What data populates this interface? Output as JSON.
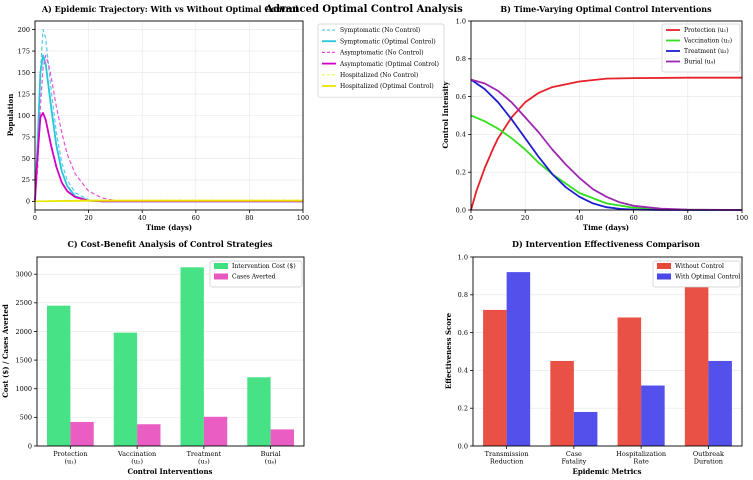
{
  "suptitle": "Advanced Optimal Control Analysis",
  "chart_data": [
    {
      "id": "A",
      "type": "line",
      "title": "A) Epidemic Trajectory: With vs Without Optimal Control",
      "xlabel": "Time (days)",
      "ylabel": "Population",
      "xlim": [
        0,
        100
      ],
      "ylim": [
        -10,
        210
      ],
      "xticks": [
        0,
        20,
        40,
        60,
        80,
        100
      ],
      "yticks": [
        0,
        25,
        50,
        75,
        100,
        125,
        150,
        175,
        200
      ],
      "legend_loc": "outside-right",
      "series": [
        {
          "name": "Symptomatic (No Control)",
          "color": "#5bc8f0",
          "dash": true,
          "x": [
            0,
            1,
            2,
            3,
            4,
            5,
            6,
            8,
            10,
            12,
            15,
            20,
            25,
            30,
            40,
            100
          ],
          "y": [
            2,
            60,
            150,
            200,
            190,
            160,
            130,
            80,
            45,
            25,
            10,
            2,
            0,
            0,
            0,
            0
          ]
        },
        {
          "name": "Symptomatic (Optimal Control)",
          "color": "#26c6da",
          "dash": false,
          "x": [
            0,
            1,
            2,
            3,
            4,
            5,
            6,
            8,
            10,
            12,
            15,
            20,
            25,
            30,
            100
          ],
          "y": [
            2,
            70,
            150,
            170,
            160,
            135,
            110,
            65,
            35,
            18,
            6,
            1,
            0,
            0,
            0
          ]
        },
        {
          "name": "Asymptomatic (No Control)",
          "color": "#ee4fd8",
          "dash": true,
          "x": [
            0,
            1,
            2,
            3,
            4,
            5,
            6,
            8,
            10,
            12,
            15,
            20,
            25,
            30,
            35,
            40,
            100
          ],
          "y": [
            1,
            40,
            110,
            155,
            170,
            160,
            145,
            110,
            80,
            55,
            32,
            12,
            4,
            1,
            0,
            0,
            0
          ]
        },
        {
          "name": "Asymptomatic (Optimal Control)",
          "color": "#d300c4",
          "dash": false,
          "x": [
            0,
            1,
            2,
            3,
            4,
            5,
            6,
            8,
            10,
            12,
            15,
            20,
            25,
            30,
            100
          ],
          "y": [
            1,
            55,
            98,
            103,
            95,
            80,
            65,
            40,
            22,
            12,
            5,
            1,
            0,
            0,
            0
          ]
        },
        {
          "name": "Hospitalized (No Control)",
          "color": "#f2f25a",
          "dash": true,
          "x": [
            0,
            10,
            20,
            40,
            60,
            80,
            100
          ],
          "y": [
            0,
            1,
            1.5,
            1.5,
            1.5,
            1.5,
            1.5
          ]
        },
        {
          "name": "Hospitalized (Optimal Control)",
          "color": "#e7e700",
          "dash": false,
          "x": [
            0,
            10,
            20,
            40,
            60,
            80,
            100
          ],
          "y": [
            0,
            0.5,
            0.8,
            0.8,
            0.8,
            0.8,
            0.8
          ]
        }
      ]
    },
    {
      "id": "B",
      "type": "line",
      "title": "B) Time-Varying Optimal Control Interventions",
      "xlabel": "Time (days)",
      "ylabel": "Control Intensity",
      "xlim": [
        0,
        100
      ],
      "ylim": [
        0,
        1.0
      ],
      "xticks": [
        0,
        20,
        40,
        60,
        80,
        100
      ],
      "yticks": [
        0.0,
        0.2,
        0.4,
        0.6,
        0.8,
        1.0
      ],
      "legend_loc": "top-right",
      "series": [
        {
          "name": "Protection (u₁)",
          "color": "#e8202a",
          "dash": false,
          "x": [
            0,
            2,
            5,
            8,
            10,
            15,
            20,
            25,
            30,
            40,
            50,
            60,
            80,
            100
          ],
          "y": [
            0,
            0.1,
            0.22,
            0.32,
            0.38,
            0.49,
            0.57,
            0.62,
            0.65,
            0.68,
            0.695,
            0.698,
            0.7,
            0.7
          ]
        },
        {
          "name": "Vaccination (u₂)",
          "color": "#32e020",
          "dash": false,
          "x": [
            0,
            5,
            10,
            15,
            20,
            25,
            30,
            40,
            50,
            60,
            70,
            80,
            100
          ],
          "y": [
            0.5,
            0.47,
            0.43,
            0.38,
            0.32,
            0.25,
            0.19,
            0.09,
            0.035,
            0.012,
            0.004,
            0.001,
            0
          ]
        },
        {
          "name": "Treatment (u₃)",
          "color": "#1f1fd0",
          "dash": false,
          "x": [
            0,
            5,
            10,
            15,
            20,
            25,
            30,
            35,
            40,
            45,
            50,
            55,
            60,
            70,
            100
          ],
          "y": [
            0.69,
            0.64,
            0.57,
            0.48,
            0.38,
            0.28,
            0.19,
            0.12,
            0.07,
            0.035,
            0.015,
            0.006,
            0.002,
            0,
            0
          ]
        },
        {
          "name": "Burial (u₄)",
          "color": "#9c27b0",
          "dash": false,
          "x": [
            0,
            5,
            10,
            15,
            20,
            25,
            30,
            35,
            40,
            45,
            50,
            55,
            60,
            70,
            80,
            100
          ],
          "y": [
            0.69,
            0.67,
            0.63,
            0.57,
            0.49,
            0.41,
            0.32,
            0.24,
            0.17,
            0.11,
            0.07,
            0.04,
            0.022,
            0.007,
            0.002,
            0
          ]
        }
      ]
    },
    {
      "id": "C",
      "type": "bar",
      "title": "C) Cost-Benefit Analysis of Control Strategies",
      "xlabel": "Control Interventions",
      "ylabel": "Cost ($) / Cases Averted",
      "categories": [
        [
          "Protection",
          "(u₁)"
        ],
        [
          "Vaccination",
          "(u₂)"
        ],
        [
          "Treatment",
          "(u₃)"
        ],
        [
          "Burial",
          "(u₄)"
        ]
      ],
      "ylim": [
        0,
        3300
      ],
      "yticks": [
        0,
        500,
        1000,
        1500,
        2000,
        2500,
        3000
      ],
      "legend_loc": "top-right",
      "series": [
        {
          "name": "Intervention Cost ($)",
          "color": "#3ee07f",
          "values": [
            2450,
            1980,
            3120,
            1200
          ]
        },
        {
          "name": "Cases Averted",
          "color": "#e955c0",
          "values": [
            420,
            380,
            510,
            290
          ]
        }
      ]
    },
    {
      "id": "D",
      "type": "bar",
      "title": "D) Intervention Effectiveness Comparison",
      "xlabel": "Epidemic Metrics",
      "ylabel": "Effectiveness Score",
      "categories": [
        [
          "Transmission",
          "Reduction"
        ],
        [
          "Case",
          "Fatality"
        ],
        [
          "Hospitalization",
          "Rate"
        ],
        [
          "Outbreak",
          "Duration"
        ]
      ],
      "ylim": [
        0,
        1.0
      ],
      "yticks": [
        0.0,
        0.2,
        0.4,
        0.6,
        0.8,
        1.0
      ],
      "legend_loc": "top-right",
      "series": [
        {
          "name": "Without Control",
          "color": "#e8483a",
          "values": [
            0.72,
            0.45,
            0.68,
            0.85
          ]
        },
        {
          "name": "With Optimal Control",
          "color": "#4b47ea",
          "values": [
            0.92,
            0.18,
            0.32,
            0.45
          ]
        }
      ]
    }
  ]
}
